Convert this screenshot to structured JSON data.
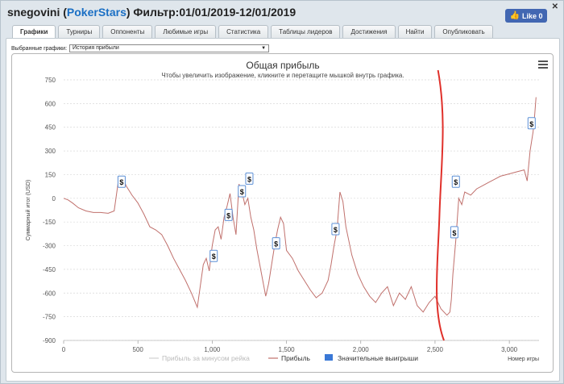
{
  "header": {
    "player": "snegovini",
    "site": "PokerStars",
    "filter": "Фильтр:01/01/2019-12/01/2019",
    "like_label": "Like 0",
    "close_icon": "close-icon",
    "like_icon": "thumbs-up-icon"
  },
  "tabs": [
    {
      "label": "Графики",
      "active": true
    },
    {
      "label": "Турниры"
    },
    {
      "label": "Оппоненты"
    },
    {
      "label": "Любимые игры"
    },
    {
      "label": "Статистика"
    },
    {
      "label": "Таблицы лидеров"
    },
    {
      "label": "Достижения"
    },
    {
      "label": "Найти"
    },
    {
      "label": "Опубликовать"
    }
  ],
  "selector": {
    "label": "Выбранные графики:",
    "value": "История прибыли"
  },
  "chart_data": {
    "type": "line",
    "title": "Общая прибыль",
    "subtitle": "Чтобы увеличить изображение, кликните и перетащите мышкой внутрь графика.",
    "xlabel": "Номер игры",
    "ylabel": "Суммарный итог (USD)",
    "xlim": [
      0,
      3200
    ],
    "ylim": [
      -900,
      750
    ],
    "xticks": [
      0,
      500,
      1000,
      1500,
      2000,
      2500,
      3000
    ],
    "xtick_labels": [
      "0",
      "500",
      "1,000",
      "1,500",
      "2,000",
      "2,500",
      "3,000"
    ],
    "yticks": [
      750,
      600,
      450,
      300,
      150,
      0,
      -150,
      -300,
      -450,
      -600,
      -750,
      -900
    ],
    "grid": true,
    "legend_position": "bottom",
    "series": [
      {
        "name": "Прибыль за минусом рейка",
        "color": "#d0d0d0",
        "visible": false,
        "values": []
      },
      {
        "name": "Прибыль",
        "color": "#c0706c",
        "x": [
          0,
          30,
          60,
          100,
          150,
          200,
          250,
          300,
          340,
          370,
          390,
          400,
          420,
          440,
          460,
          500,
          540,
          580,
          620,
          660,
          700,
          740,
          780,
          820,
          860,
          900,
          940,
          960,
          980,
          1000,
          1020,
          1040,
          1060,
          1080,
          1100,
          1120,
          1140,
          1160,
          1180,
          1200,
          1220,
          1240,
          1260,
          1280,
          1300,
          1320,
          1340,
          1360,
          1380,
          1400,
          1420,
          1440,
          1460,
          1480,
          1500,
          1540,
          1580,
          1620,
          1660,
          1700,
          1740,
          1780,
          1800,
          1820,
          1840,
          1860,
          1880,
          1900,
          1940,
          1980,
          2020,
          2060,
          2100,
          2140,
          2180,
          2220,
          2260,
          2300,
          2340,
          2380,
          2420,
          2460,
          2500,
          2540,
          2580,
          2600,
          2610,
          2620,
          2640,
          2660,
          2680,
          2700,
          2740,
          2780,
          2820,
          2860,
          2900,
          2940,
          2980,
          3020,
          3060,
          3100,
          3120,
          3140,
          3160,
          3170,
          3180
        ],
        "y": [
          0,
          -10,
          -30,
          -60,
          -80,
          -90,
          -90,
          -95,
          -80,
          120,
          110,
          130,
          80,
          50,
          20,
          -30,
          -100,
          -180,
          -200,
          -230,
          -300,
          -380,
          -450,
          -520,
          -600,
          -690,
          -420,
          -380,
          -460,
          -300,
          -200,
          -180,
          -260,
          -120,
          -50,
          30,
          -120,
          -230,
          90,
          40,
          -40,
          0,
          -120,
          -200,
          -320,
          -420,
          -520,
          -620,
          -540,
          -420,
          -300,
          -200,
          -120,
          -160,
          -330,
          -380,
          -460,
          -520,
          -580,
          -630,
          -600,
          -520,
          -420,
          -300,
          -200,
          40,
          -20,
          -180,
          -360,
          -480,
          -560,
          -620,
          -660,
          -600,
          -560,
          -680,
          -600,
          -640,
          -560,
          -680,
          -720,
          -660,
          -620,
          -700,
          -740,
          -720,
          -640,
          -480,
          -260,
          0,
          -40,
          40,
          20,
          60,
          80,
          100,
          120,
          140,
          150,
          160,
          170,
          180,
          110,
          300,
          420,
          520,
          640
        ]
      },
      {
        "name": "Значительные выигрыши",
        "color": "#3a78d6",
        "type": "marker"
      }
    ],
    "annotations": [
      {
        "label": "$",
        "x": 390,
        "y": 100
      },
      {
        "label": "$",
        "x": 1010,
        "y": -370
      },
      {
        "label": "$",
        "x": 1110,
        "y": -110
      },
      {
        "label": "$",
        "x": 1200,
        "y": 40
      },
      {
        "label": "$",
        "x": 1250,
        "y": 120
      },
      {
        "label": "$",
        "x": 1430,
        "y": -290
      },
      {
        "label": "$",
        "x": 1830,
        "y": -200
      },
      {
        "label": "$",
        "x": 2640,
        "y": 100
      },
      {
        "label": "$",
        "x": 2630,
        "y": -220
      },
      {
        "label": "$",
        "x": 3150,
        "y": 470
      }
    ],
    "overlay_line_color": "#e0302a"
  }
}
